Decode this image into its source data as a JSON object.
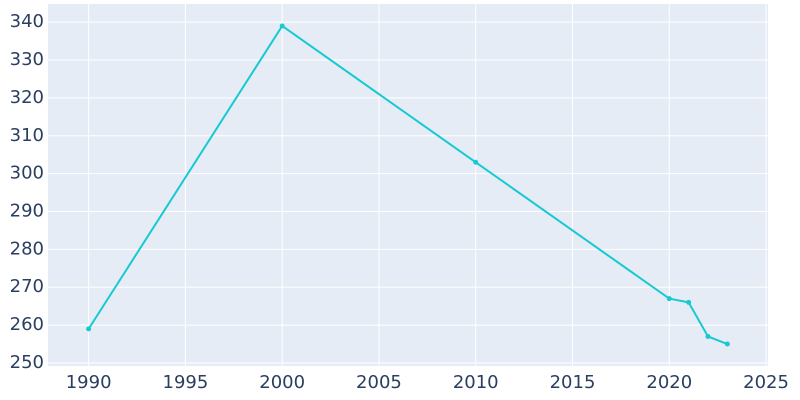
{
  "chart_data": {
    "type": "line",
    "x": [
      1990,
      2000,
      2010,
      2020,
      2021,
      2022,
      2023
    ],
    "series": [
      {
        "color": "#17c9d1",
        "values": [
          259,
          339,
          303,
          267,
          266,
          257,
          255
        ]
      }
    ],
    "xlim": [
      1987.9,
      2025.1
    ],
    "xticks": [
      1990,
      1995,
      2000,
      2005,
      2010,
      2015,
      2020,
      2025
    ],
    "ylim": [
      249.2,
      344.8
    ],
    "yticks": [
      250,
      260,
      270,
      280,
      290,
      300,
      310,
      320,
      330,
      340
    ],
    "grid": true
  }
}
